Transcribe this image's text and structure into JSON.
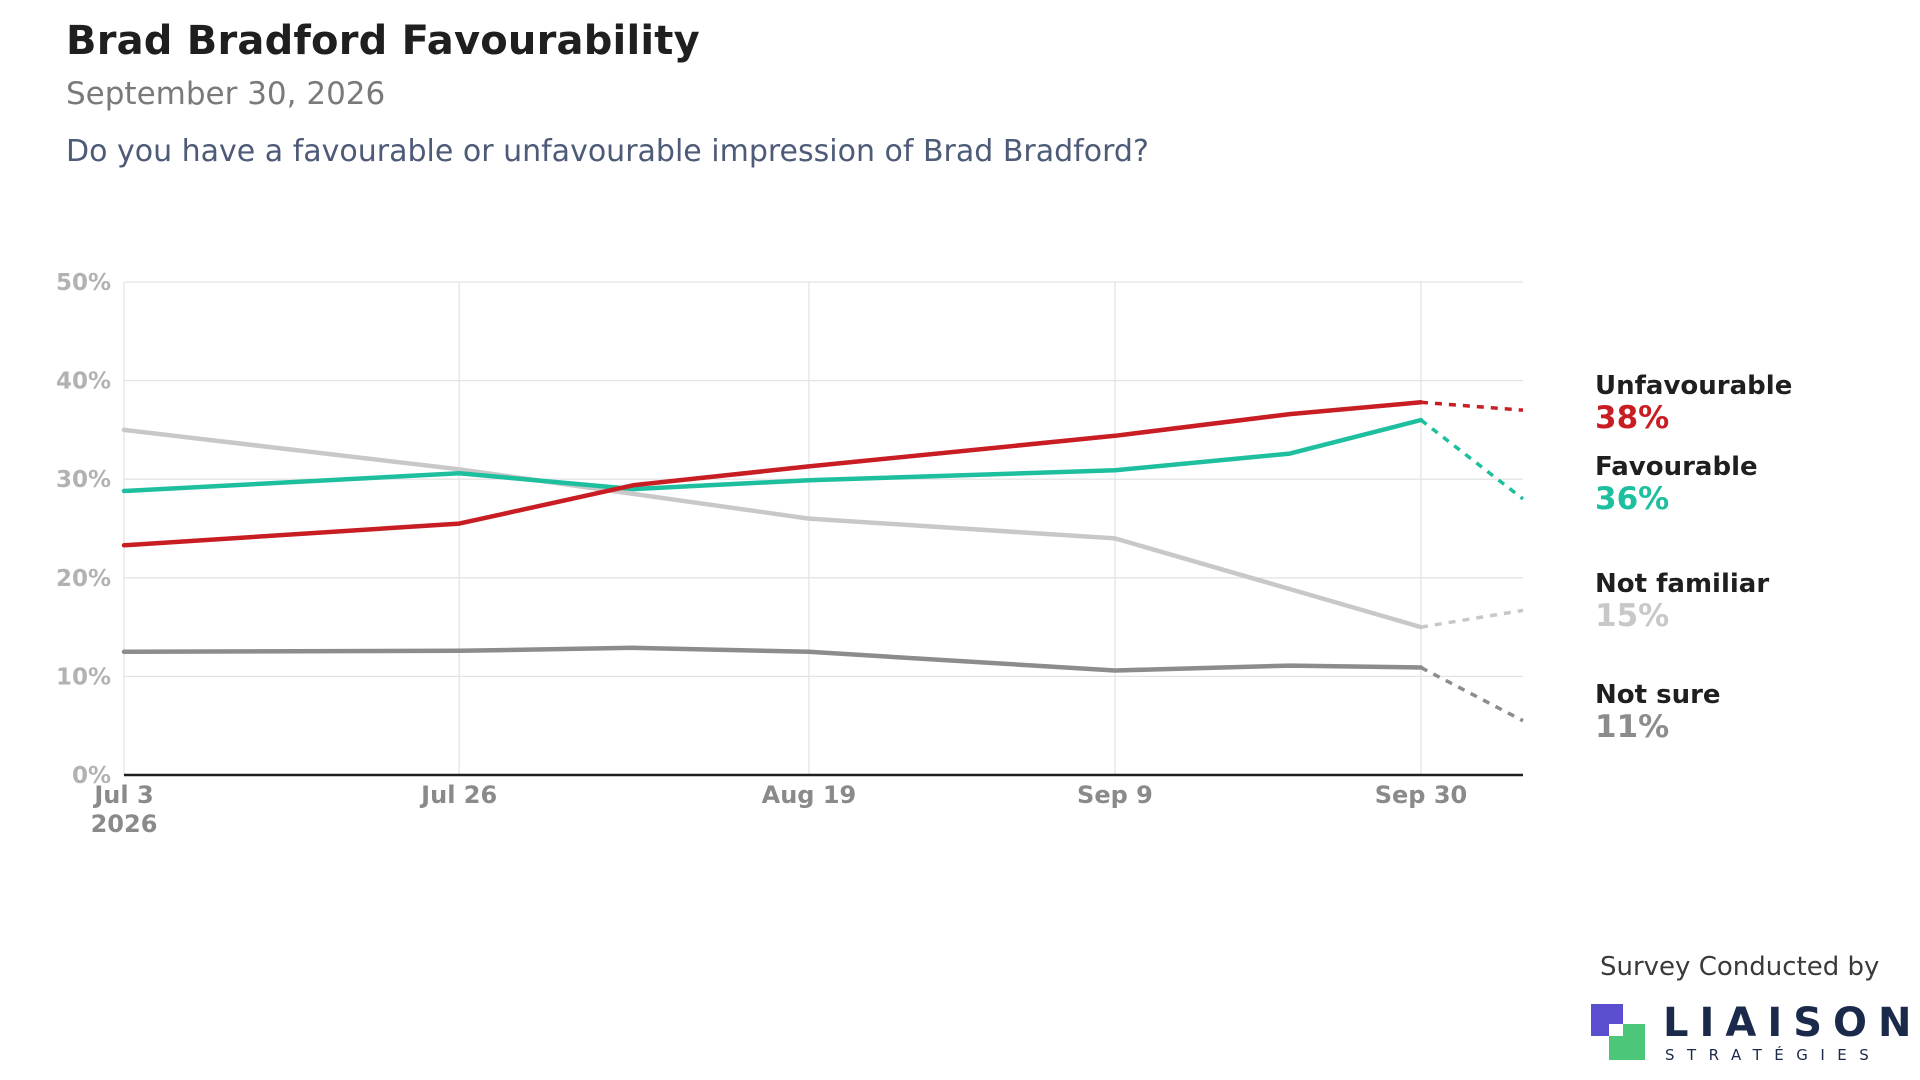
{
  "header": {
    "title": "Brad Bradford Favourability",
    "subtitle": "September 30, 2026",
    "question": "Do you have a favourable or unfavourable impression of Brad Bradford?"
  },
  "footer": {
    "credit": "Survey Conducted by",
    "logo_text": "LIAISON",
    "logo_sub": "STRATÉGIES",
    "logo_colors": {
      "purple": "#5b4fcf",
      "green": "#4cc77a"
    }
  },
  "chart_data": {
    "type": "line",
    "x_start": "2026-07-03",
    "x_end": "2026-10-07",
    "x_ticks": [
      {
        "date": "2026-07-03",
        "label": "Jul 3",
        "sublabel": "2026"
      },
      {
        "date": "2026-07-26",
        "label": "Jul 26"
      },
      {
        "date": "2026-08-19",
        "label": "Aug 19"
      },
      {
        "date": "2026-09-09",
        "label": "Sep 9"
      },
      {
        "date": "2026-09-30",
        "label": "Sep 30"
      }
    ],
    "ylim": [
      0,
      50
    ],
    "y_ticks": [
      {
        "value": 0,
        "label": "0%"
      },
      {
        "value": 10,
        "label": "10%"
      },
      {
        "value": 20,
        "label": "20%"
      },
      {
        "value": 30,
        "label": "30%"
      },
      {
        "value": 40,
        "label": "40%"
      },
      {
        "value": 50,
        "label": "50%"
      }
    ],
    "grid": true,
    "series": [
      {
        "name": "Not familiar",
        "end_label": "15%",
        "color": "#c8c8c8",
        "points": [
          {
            "date": "2026-07-03",
            "value": 35.0
          },
          {
            "date": "2026-07-26",
            "value": 31.0
          },
          {
            "date": "2026-08-07",
            "value": 28.5
          },
          {
            "date": "2026-08-19",
            "value": 26.0
          },
          {
            "date": "2026-09-09",
            "value": 24.0
          },
          {
            "date": "2026-09-30",
            "value": 15.0
          }
        ],
        "projection": {
          "date": "2026-10-07",
          "value": 16.7
        }
      },
      {
        "name": "Not sure",
        "end_label": "11%",
        "color": "#8c8c8c",
        "points": [
          {
            "date": "2026-07-03",
            "value": 12.5
          },
          {
            "date": "2026-07-26",
            "value": 12.6
          },
          {
            "date": "2026-08-07",
            "value": 12.9
          },
          {
            "date": "2026-08-19",
            "value": 12.5
          },
          {
            "date": "2026-09-09",
            "value": 10.6
          },
          {
            "date": "2026-09-21",
            "value": 11.1
          },
          {
            "date": "2026-09-30",
            "value": 10.9
          }
        ],
        "projection": {
          "date": "2026-10-07",
          "value": 5.5
        }
      },
      {
        "name": "Favourable",
        "end_label": "36%",
        "color": "#1dbf9f",
        "points": [
          {
            "date": "2026-07-03",
            "value": 28.8
          },
          {
            "date": "2026-07-26",
            "value": 30.6
          },
          {
            "date": "2026-08-07",
            "value": 29.0
          },
          {
            "date": "2026-08-19",
            "value": 29.9
          },
          {
            "date": "2026-09-09",
            "value": 30.9
          },
          {
            "date": "2026-09-21",
            "value": 32.6
          },
          {
            "date": "2026-09-30",
            "value": 36.0
          }
        ],
        "projection": {
          "date": "2026-10-07",
          "value": 28.0
        }
      },
      {
        "name": "Unfavourable",
        "end_label": "38%",
        "color": "#c91d24",
        "points": [
          {
            "date": "2026-07-03",
            "value": 23.3
          },
          {
            "date": "2026-07-26",
            "value": 25.5
          },
          {
            "date": "2026-08-07",
            "value": 29.4
          },
          {
            "date": "2026-08-19",
            "value": 31.3
          },
          {
            "date": "2026-09-09",
            "value": 34.4
          },
          {
            "date": "2026-09-21",
            "value": 36.6
          },
          {
            "date": "2026-09-30",
            "value": 37.8
          }
        ],
        "projection": {
          "date": "2026-10-07",
          "value": 37.0
        }
      }
    ],
    "end_labels_order": [
      "Unfavourable",
      "Favourable",
      "Not familiar",
      "Not sure"
    ]
  }
}
